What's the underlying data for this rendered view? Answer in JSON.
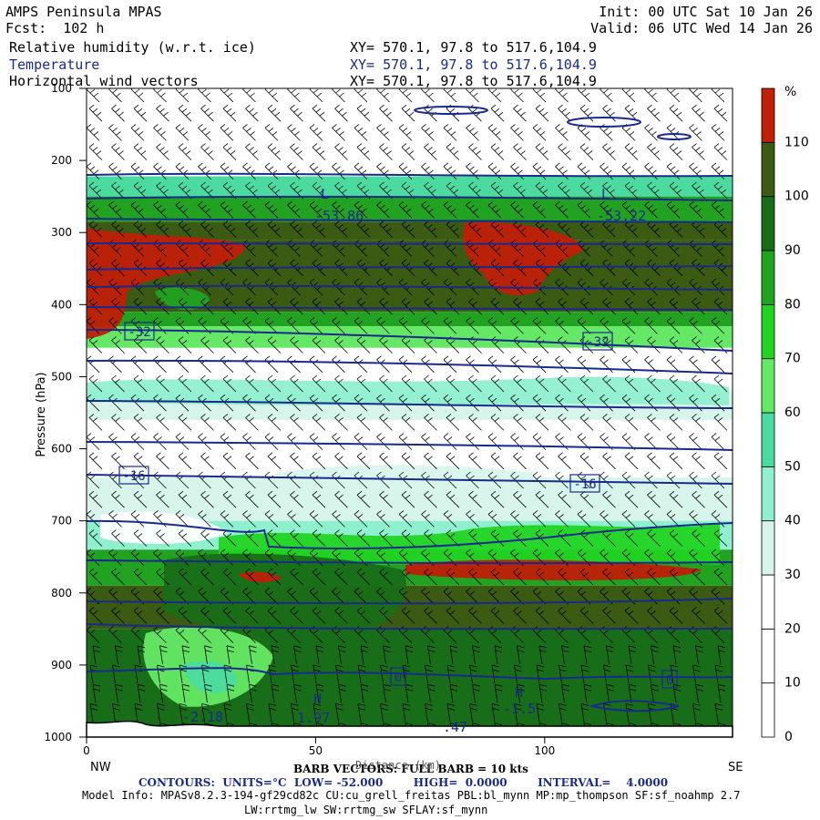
{
  "header": {
    "title": "AMPS Peninsula MPAS",
    "forecast": "Fcst:  102 h",
    "init": "Init: 00 UTC Sat 10 Jan 26",
    "valid": "Valid: 06 UTC Wed 14 Jan 26",
    "fields": [
      {
        "name": "Relative humidity (w.r.t. ice)",
        "xy": "XY= 570.1, 97.8 to 517.6,104.9"
      },
      {
        "name": "Temperature",
        "xy": "XY= 570.1, 97.8 to 517.6,104.9"
      },
      {
        "name": "Horizontal wind vectors",
        "xy": "XY= 570.1, 97.8 to 517.6,104.9"
      }
    ]
  },
  "colors": {
    "rh_bands": [
      "#ffffff",
      "#ffffff",
      "#ffffff",
      "#d8f5ec",
      "#8ff0d0",
      "#4bdba0",
      "#65e865",
      "#22d422",
      "#21a321",
      "#186e18",
      "#3b5a12",
      "#c01f08"
    ],
    "contour": "#1a2a8c"
  },
  "chart_data": {
    "type": "heatmap",
    "ylabel": "Pressure (hPa)",
    "xlabel": "Distance (km)",
    "x_ticks": [
      "0",
      "50",
      "100"
    ],
    "x_end_labels": {
      "left": "NW",
      "right": "SE"
    },
    "y_ticks": [
      "100",
      "200",
      "300",
      "400",
      "500",
      "600",
      "700",
      "800",
      "900",
      "1000"
    ],
    "xlim": [
      0,
      141
    ],
    "ylim": [
      1000,
      100
    ],
    "colorbar": {
      "unit": "%",
      "levels": [
        0,
        10,
        20,
        30,
        40,
        50,
        60,
        70,
        80,
        90,
        100,
        110
      ],
      "labels": [
        "0",
        "10",
        "20",
        "30",
        "40",
        "50",
        "60",
        "70",
        "80",
        "90",
        "100",
        "110"
      ]
    },
    "temperature_contours": {
      "units": "°C",
      "low": -52.0,
      "high": 0.0,
      "interval": 4.0,
      "labels": [
        "-32",
        "-32",
        "-16",
        "-16",
        "0",
        "0"
      ]
    },
    "annotations": [
      "L",
      "-53.86",
      "L",
      "-53.22",
      "H",
      "1.97",
      "H",
      "-1.5",
      "-2.18",
      ".47"
    ],
    "rh_layers": [
      {
        "p_top": 100,
        "p_bot": 222,
        "rh": 20
      },
      {
        "p_top": 222,
        "p_bot": 250,
        "rh": 50
      },
      {
        "p_top": 250,
        "p_bot": 285,
        "rh": 80
      },
      {
        "p_top": 285,
        "p_bot": 310,
        "rh": 100
      },
      {
        "p_top": 310,
        "p_bot": 410,
        "rh": 105
      },
      {
        "p_top": 410,
        "p_bot": 430,
        "rh": 85
      },
      {
        "p_top": 430,
        "p_bot": 460,
        "rh": 65
      },
      {
        "p_top": 460,
        "p_bot": 520,
        "rh": 20
      },
      {
        "p_top": 520,
        "p_bot": 560,
        "rh": 35
      },
      {
        "p_top": 560,
        "p_bot": 640,
        "rh": 25
      },
      {
        "p_top": 640,
        "p_bot": 700,
        "rh": 35
      },
      {
        "p_top": 700,
        "p_bot": 740,
        "rh": 45
      },
      {
        "p_top": 740,
        "p_bot": 790,
        "rh": 85
      },
      {
        "p_top": 790,
        "p_bot": 850,
        "rh": 105
      },
      {
        "p_top": 850,
        "p_bot": 1000,
        "rh": 95
      }
    ],
    "barb_legend": "BARB VECTORS: FULL BARB = 10 kts"
  },
  "footer": {
    "barb": "BARB VECTORS: FULL BARB = 10 kts",
    "xlabel": "Distance (km)",
    "contours": "CONTOURS:  UNITS=°C  LOW= -52.000        HIGH=  0.0000        INTERVAL=    4.0000",
    "model_info": "Model Info: MPASv8.2.3-194-gf29cd82c CU:cu_grell_freitas PBL:bl_mynn MP:mp_thompson SF:sf_noahmp 2.7",
    "model_info2": "LW:rrtmg_lw SW:rrtmg_sw SFLAY:sf_mynn"
  }
}
